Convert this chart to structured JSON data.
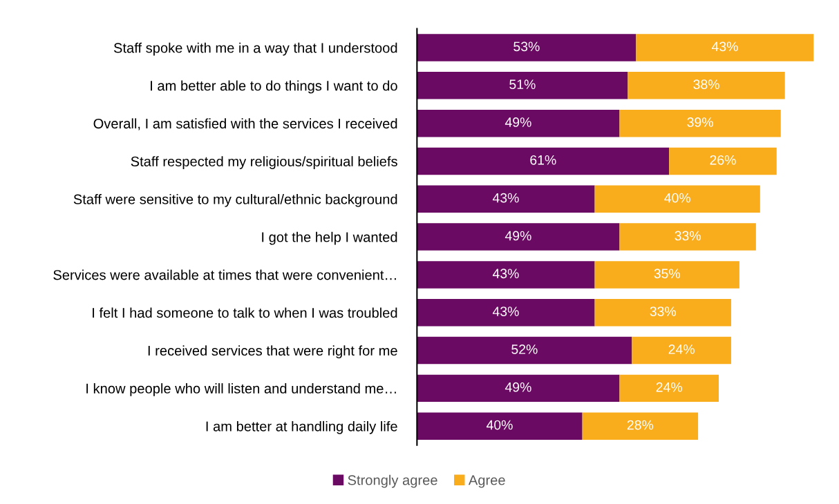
{
  "chart_data": {
    "type": "bar",
    "orientation": "horizontal",
    "stacked": true,
    "legend": "bottom",
    "grid": false,
    "tick_labels": "y",
    "categories": [
      "Staff spoke with me in a way that I understood",
      "I am better able to do things I want to do",
      "Overall, I am satisfied with the services I received",
      "Staff respected my religious/spiritual beliefs",
      "Staff were sensitive to my cultural/ethnic background",
      "I got the help I wanted",
      "Services were available at times that were convenient…",
      "I felt I had someone to talk to when I was troubled",
      "I received services that were right for me",
      "I know people who will listen and understand me…",
      "I am better at handling daily life"
    ],
    "series": [
      {
        "name": "Strongly agree",
        "color": "#6b0a62",
        "values": [
          53,
          51,
          49,
          61,
          43,
          49,
          43,
          43,
          52,
          49,
          40
        ],
        "value_labels": [
          "53%",
          "51%",
          "49%",
          "61%",
          "43%",
          "49%",
          "43%",
          "43%",
          "52%",
          "49%",
          "40%"
        ]
      },
      {
        "name": "Agree",
        "color": "#f9ad1c",
        "values": [
          43,
          38,
          39,
          26,
          40,
          33,
          35,
          33,
          24,
          24,
          28
        ],
        "value_labels": [
          "43%",
          "38%",
          "39%",
          "26%",
          "40%",
          "33%",
          "35%",
          "33%",
          "24%",
          "24%",
          "28%"
        ]
      }
    ]
  }
}
